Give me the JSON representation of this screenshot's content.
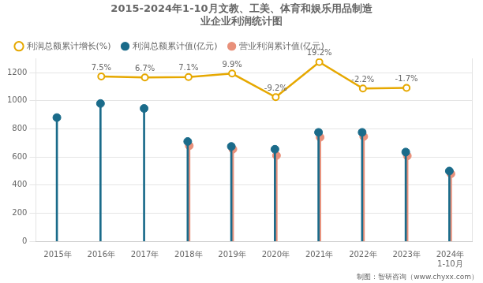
{
  "chart_data": {
    "type": "lollipop",
    "title": "2015-2024年1-10月文教、工美、体育和娱乐用品制造\n业企业利润统计图",
    "footer": "制图：智研咨询（www.chyxx.com）",
    "categories": [
      "2015年",
      "2016年",
      "2017年",
      "2018年",
      "2019年",
      "2020年",
      "2021年",
      "2022年",
      "2023年",
      "2024年\n1-10月"
    ],
    "series": [
      {
        "name": "利润总额累计值(亿元)",
        "type": "lollipop",
        "color": "#1a6b8a",
        "marker": "circle",
        "values": [
          880,
          980,
          945,
          710,
          675,
          655,
          775,
          775,
          635,
          500
        ]
      },
      {
        "name": "营业利润累计值(亿元)",
        "type": "lollipop",
        "color": "#e8907a",
        "marker": "circle",
        "values": [
          null,
          null,
          null,
          680,
          655,
          610,
          740,
          745,
          608,
          480
        ]
      },
      {
        "name": "利润总额累计增长(%)",
        "type": "line",
        "axis": "y2",
        "color": "#e6a800",
        "marker": "circle",
        "values": [
          null,
          7.5,
          6.7,
          7.1,
          9.9,
          -9.2,
          19.2,
          -2.2,
          -1.7,
          null
        ],
        "data_labels": true,
        "value_labels": [
          null,
          "7.5%",
          "6.7%",
          "7.1%",
          "9.9%",
          "-9.2%",
          "19.2%",
          "-2.2%",
          "-1.7%",
          null
        ]
      }
    ],
    "ylim": [
      0,
      1300
    ],
    "yticks": [
      0,
      200,
      400,
      600,
      800,
      1000,
      1200
    ],
    "y2lim": [
      -125.6,
      22.04
    ],
    "y2ticks": [],
    "grid": true,
    "legend": "upper left"
  }
}
